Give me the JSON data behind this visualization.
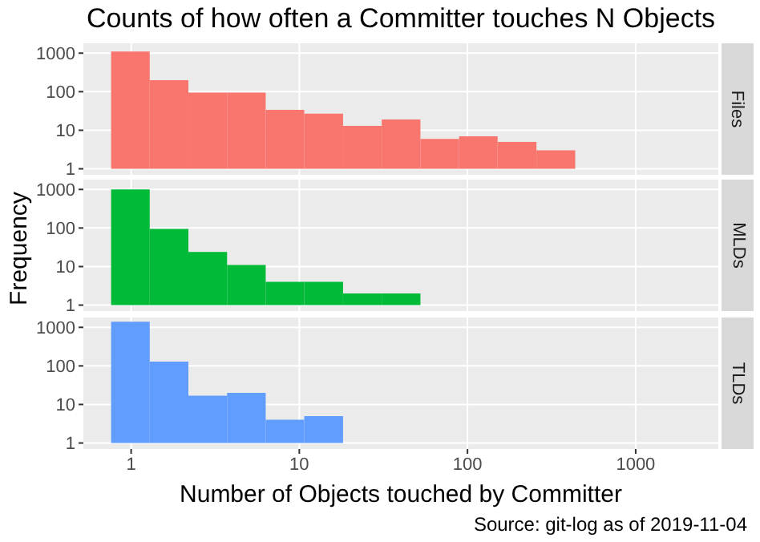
{
  "chart_data": [
    {
      "type": "histogram",
      "title": "Counts of how often a Committer touches N Objects",
      "bins": [
        0.76,
        1.29,
        2.19,
        3.72,
        6.31,
        10.7,
        18.2,
        30.9,
        52.5,
        89.1,
        151,
        257,
        437
      ],
      "series": [
        {
          "name": "Files",
          "color": "#f8766d",
          "values": [
            1100,
            200,
            95,
            95,
            34,
            27,
            13,
            19,
            6,
            7,
            5,
            3
          ]
        }
      ],
      "log": "xy",
      "xlim": [
        0.52,
        3100
      ],
      "xticks": [
        1,
        10,
        100,
        1000
      ],
      "ylim": [
        0.7,
        1800
      ],
      "yticks": [
        1,
        10,
        100,
        1000
      ],
      "grid": true,
      "tick_labels": "y"
    },
    {
      "type": "histogram",
      "ylabel": "Frequency",
      "bins": [
        0.76,
        1.29,
        2.19,
        3.72,
        6.31,
        10.7,
        18.2,
        30.9,
        52.5
      ],
      "series": [
        {
          "name": "MLDs",
          "color": "#00ba38",
          "values": [
            1000,
            95,
            24,
            11,
            4,
            4,
            2,
            2
          ]
        }
      ],
      "log": "xy",
      "xlim": [
        0.52,
        3100
      ],
      "xticks": [
        1,
        10,
        100,
        1000
      ],
      "ylim": [
        0.7,
        1800
      ],
      "yticks": [
        1,
        10,
        100,
        1000
      ],
      "grid": true,
      "tick_labels": "y"
    },
    {
      "type": "histogram",
      "xlabel": "Number of Objects touched by Committer",
      "annotations": [
        "Source: git-log as of 2019-11-04"
      ],
      "bins": [
        0.76,
        1.29,
        2.19,
        3.72,
        6.31,
        10.7,
        18.2
      ],
      "series": [
        {
          "name": "TLDs",
          "color": "#619cff",
          "values": [
            1400,
            130,
            17,
            20,
            4,
            5
          ]
        }
      ],
      "log": "xy",
      "xlim": [
        0.52,
        3100
      ],
      "xticks": [
        1,
        10,
        100,
        1000
      ],
      "ylim": [
        0.7,
        1800
      ],
      "yticks": [
        1,
        10,
        100,
        1000
      ],
      "grid": true
    }
  ]
}
